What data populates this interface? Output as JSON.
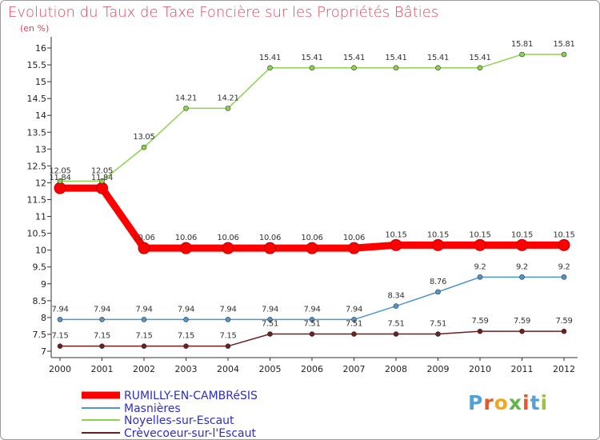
{
  "title": "Evolution du Taux de Taxe Foncière sur les Propriétés Bâties",
  "subtitle": "(en %)",
  "logo": {
    "text": "Proxiti",
    "letter_colors": [
      "#4fa3d8",
      "#e8562a",
      "#f2a81d",
      "#64b44c",
      "#e8562a",
      "#4fa3d8",
      "#9bc53d"
    ]
  },
  "chart_data": {
    "type": "line",
    "x": [
      "2000",
      "2001",
      "2002",
      "2003",
      "2004",
      "2005",
      "2006",
      "2007",
      "2008",
      "2009",
      "2010",
      "2011",
      "2012"
    ],
    "ylim": [
      7,
      16
    ],
    "yticks": [
      "7",
      "7.5",
      "8",
      "8.5",
      "9",
      "9.5",
      "10",
      "10.5",
      "11",
      "11.5",
      "12",
      "12.5",
      "13",
      "13.5",
      "14",
      "14.5",
      "15",
      "15.5",
      "16"
    ],
    "grid": false,
    "legend_position": "bottom-left",
    "series": [
      {
        "name": "RUMILLY-EN-CAMBRéSIS",
        "color": "#ff0000",
        "values": [
          11.84,
          11.84,
          10.06,
          10.06,
          10.06,
          10.06,
          10.06,
          10.06,
          10.15,
          10.15,
          10.15,
          10.15,
          10.15
        ],
        "labels": [
          "11.84",
          "11.84",
          "10.06",
          "10.06",
          "10.06",
          "10.06",
          "10.06",
          "10.06",
          "10.15",
          "10.15",
          "10.15",
          "10.15",
          "10.15"
        ]
      },
      {
        "name": "Masnières",
        "color": "#4f95d0",
        "values": [
          7.94,
          7.94,
          7.94,
          7.94,
          7.94,
          7.94,
          7.94,
          7.94,
          8.34,
          8.76,
          9.2,
          9.2,
          9.2
        ],
        "labels": [
          "7.94",
          "7.94",
          "7.94",
          "7.94",
          "7.94",
          "7.94",
          "7.94",
          "7.94",
          "8.34",
          "8.76",
          "9.2",
          "9.2",
          "9.2"
        ]
      },
      {
        "name": "Noyelles-sur-Escaut",
        "color": "#8ed34e",
        "values": [
          12.05,
          12.05,
          13.05,
          14.21,
          14.21,
          15.41,
          15.41,
          15.41,
          15.41,
          15.41,
          15.41,
          15.81,
          15.81
        ],
        "labels": [
          "12.05",
          "12.05",
          "13.05",
          "14.21",
          "14.21",
          "15.41",
          "15.41",
          "15.41",
          "15.41",
          "15.41",
          "15.41",
          "15.81",
          "15.81"
        ]
      },
      {
        "name": "Crèvecoeur-sur-l'Escaut",
        "color": "#6b1f1f",
        "values": [
          7.15,
          7.15,
          7.15,
          7.15,
          7.15,
          7.51,
          7.51,
          7.51,
          7.51,
          7.51,
          7.59,
          7.59,
          7.59
        ],
        "labels": [
          "7.15",
          "7.15",
          "7.15",
          "7.15",
          "7.15",
          "7.51",
          "7.51",
          "7.51",
          "7.51",
          "7.51",
          "7.59",
          "7.59",
          "7.59"
        ]
      }
    ]
  }
}
